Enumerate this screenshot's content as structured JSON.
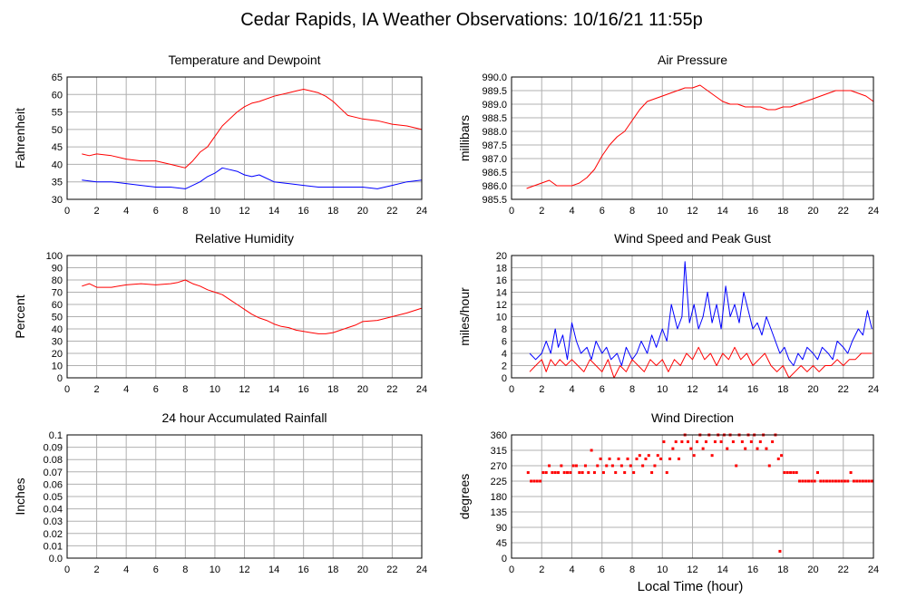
{
  "page": {
    "title": "Cedar Rapids, IA Weather Observations: 10/16/21 11:55p",
    "xlabel": "Local Time (hour)"
  },
  "chart_data": [
    {
      "type": "line",
      "title": "Temperature and Dewpoint",
      "ylabel": "Fahrenheit",
      "xlim": [
        0,
        24
      ],
      "ylim": [
        30,
        65
      ],
      "xticks": [
        0,
        2,
        4,
        6,
        8,
        10,
        12,
        14,
        16,
        18,
        20,
        22,
        24
      ],
      "yticks": [
        30,
        35,
        40,
        45,
        50,
        55,
        60,
        65
      ],
      "grid": true,
      "series": [
        {
          "color": "#ff0000",
          "x": [
            1,
            1.5,
            2,
            3,
            4,
            5,
            6,
            7,
            7.5,
            8,
            8.5,
            9,
            9.5,
            10,
            10.5,
            11,
            11.5,
            12,
            12.5,
            13,
            14,
            15,
            15.5,
            16,
            16.5,
            17,
            17.5,
            18,
            18.5,
            19,
            20,
            21,
            22,
            23,
            24
          ],
          "y": [
            43,
            42.5,
            43,
            42.5,
            41.5,
            41,
            41,
            40,
            39.5,
            39,
            41,
            43.5,
            45,
            48,
            51,
            53,
            55,
            56.5,
            57.5,
            58,
            59.5,
            60.5,
            61,
            61.5,
            61,
            60.5,
            59.5,
            58,
            56,
            54,
            53,
            52.5,
            51.5,
            51,
            50
          ]
        },
        {
          "color": "#0000ff",
          "x": [
            1,
            2,
            3,
            4,
            5,
            6,
            7,
            8,
            8.5,
            9,
            9.5,
            10,
            10.5,
            11,
            11.5,
            12,
            12.5,
            13,
            14,
            15,
            16,
            17,
            18,
            19,
            20,
            21,
            22,
            23,
            24
          ],
          "y": [
            35.5,
            35,
            35,
            34.5,
            34,
            33.5,
            33.5,
            33,
            34,
            35,
            36.5,
            37.5,
            39,
            38.5,
            38,
            37,
            36.5,
            37,
            35,
            34.5,
            34,
            33.5,
            33.5,
            33.5,
            33.5,
            33,
            34,
            35,
            35.5
          ]
        }
      ]
    },
    {
      "type": "line",
      "title": "Air Pressure",
      "ylabel": "millibars",
      "xlim": [
        0,
        24
      ],
      "ylim": [
        985.5,
        990.0
      ],
      "xticks": [
        0,
        2,
        4,
        6,
        8,
        10,
        12,
        14,
        16,
        18,
        20,
        22,
        24
      ],
      "yticks": [
        985.5,
        986.0,
        986.5,
        987.0,
        987.5,
        988.0,
        988.5,
        989.0,
        989.5,
        990.0
      ],
      "ytick_labels": [
        "985.5",
        "986.0",
        "986.5",
        "987.0",
        "987.5",
        "988.0",
        "988.5",
        "989.0",
        "989.5",
        "990.0"
      ],
      "grid": true,
      "series": [
        {
          "color": "#ff0000",
          "x": [
            1,
            1.5,
            2,
            2.5,
            3,
            3.5,
            4,
            4.5,
            5,
            5.5,
            6,
            6.5,
            7,
            7.5,
            8,
            8.5,
            9,
            9.5,
            10,
            10.5,
            11,
            11.5,
            12,
            12.5,
            13,
            13.5,
            14,
            14.5,
            15,
            15.5,
            16,
            16.5,
            17,
            17.5,
            18,
            18.5,
            19,
            19.5,
            20,
            20.5,
            21,
            21.5,
            22,
            22.5,
            23,
            23.5,
            24
          ],
          "y": [
            985.9,
            986.0,
            986.1,
            986.2,
            986.0,
            986.0,
            986.0,
            986.1,
            986.3,
            986.6,
            987.1,
            987.5,
            987.8,
            988.0,
            988.4,
            988.8,
            989.1,
            989.2,
            989.3,
            989.4,
            989.5,
            989.6,
            989.6,
            989.7,
            989.5,
            989.3,
            989.1,
            989.0,
            989.0,
            988.9,
            988.9,
            988.9,
            988.8,
            988.8,
            988.9,
            988.9,
            989.0,
            989.1,
            989.2,
            989.3,
            989.4,
            989.5,
            989.5,
            989.5,
            989.4,
            989.3,
            989.1
          ]
        }
      ]
    },
    {
      "type": "line",
      "title": "Relative Humidity",
      "ylabel": "Percent",
      "xlim": [
        0,
        24
      ],
      "ylim": [
        0,
        100
      ],
      "xticks": [
        0,
        2,
        4,
        6,
        8,
        10,
        12,
        14,
        16,
        18,
        20,
        22,
        24
      ],
      "yticks": [
        0,
        10,
        20,
        30,
        40,
        50,
        60,
        70,
        80,
        90,
        100
      ],
      "grid": true,
      "series": [
        {
          "color": "#ff0000",
          "x": [
            1,
            1.5,
            2,
            3,
            4,
            5,
            6,
            7,
            7.5,
            8,
            8.5,
            9,
            9.5,
            10,
            10.5,
            11,
            11.5,
            12,
            12.5,
            13,
            13.5,
            14,
            14.5,
            15,
            15.5,
            16,
            16.5,
            17,
            17.5,
            18,
            18.5,
            19,
            19.5,
            20,
            21,
            22,
            23,
            24
          ],
          "y": [
            75,
            77,
            74,
            74,
            76,
            77,
            76,
            77,
            78,
            80,
            77,
            75,
            72,
            70,
            68,
            64,
            60,
            56,
            52,
            49,
            47,
            44,
            42,
            41,
            39,
            38,
            37,
            36,
            36,
            37,
            39,
            41,
            43,
            46,
            47,
            50,
            53,
            57
          ]
        }
      ]
    },
    {
      "type": "line",
      "title": "Wind Speed and Peak Gust",
      "ylabel": "miles/hour",
      "xlim": [
        0,
        24
      ],
      "ylim": [
        0,
        20
      ],
      "xticks": [
        0,
        2,
        4,
        6,
        8,
        10,
        12,
        14,
        16,
        18,
        20,
        22,
        24
      ],
      "yticks": [
        0,
        2,
        4,
        6,
        8,
        10,
        12,
        14,
        16,
        18,
        20
      ],
      "grid": true,
      "series": [
        {
          "color": "#0000ff",
          "x": [
            1.2,
            1.6,
            2,
            2.3,
            2.6,
            2.9,
            3.1,
            3.4,
            3.7,
            4,
            4.3,
            4.6,
            5,
            5.3,
            5.6,
            6,
            6.3,
            6.6,
            7,
            7.3,
            7.6,
            8,
            8.3,
            8.6,
            9,
            9.3,
            9.6,
            10,
            10.3,
            10.6,
            11,
            11.3,
            11.5,
            11.8,
            12.1,
            12.4,
            12.7,
            13,
            13.3,
            13.6,
            13.9,
            14.2,
            14.5,
            14.8,
            15.1,
            15.4,
            15.7,
            16,
            16.3,
            16.6,
            16.9,
            17.2,
            17.5,
            17.8,
            18.1,
            18.4,
            18.7,
            19,
            19.3,
            19.6,
            20,
            20.3,
            20.6,
            21,
            21.3,
            21.6,
            22,
            22.3,
            22.6,
            23,
            23.3,
            23.6,
            23.9
          ],
          "y": [
            4,
            3,
            4,
            6,
            4,
            8,
            5,
            7,
            3,
            9,
            6,
            4,
            5,
            3,
            6,
            4,
            5,
            3,
            4,
            2,
            5,
            3,
            4,
            6,
            4,
            7,
            5,
            8,
            6,
            12,
            8,
            10,
            19,
            9,
            12,
            8,
            10,
            14,
            9,
            12,
            8,
            15,
            10,
            12,
            9,
            14,
            11,
            8,
            9,
            7,
            10,
            8,
            6,
            4,
            5,
            3,
            2,
            4,
            3,
            5,
            4,
            3,
            5,
            4,
            3,
            6,
            5,
            4,
            6,
            8,
            7,
            11,
            8
          ]
        },
        {
          "color": "#ff0000",
          "x": [
            1.2,
            1.6,
            2,
            2.3,
            2.6,
            2.9,
            3.2,
            3.6,
            4,
            4.4,
            4.8,
            5.2,
            5.6,
            6,
            6.4,
            6.8,
            7.2,
            7.6,
            8,
            8.4,
            8.8,
            9.2,
            9.6,
            10,
            10.4,
            10.8,
            11.2,
            11.6,
            12,
            12.4,
            12.8,
            13.2,
            13.6,
            14,
            14.4,
            14.8,
            15.2,
            15.6,
            16,
            16.4,
            16.8,
            17.2,
            17.6,
            18,
            18.4,
            18.8,
            19.2,
            19.6,
            20,
            20.4,
            20.8,
            21.2,
            21.6,
            22,
            22.4,
            22.8,
            23.2,
            23.6,
            23.9
          ],
          "y": [
            1,
            2,
            3,
            1,
            3,
            2,
            3,
            2,
            3,
            2,
            1,
            3,
            2,
            1,
            3,
            0,
            2,
            1,
            3,
            2,
            1,
            3,
            2,
            3,
            1,
            3,
            2,
            4,
            3,
            5,
            3,
            4,
            2,
            4,
            3,
            5,
            3,
            4,
            2,
            3,
            4,
            2,
            1,
            2,
            0,
            1,
            2,
            1,
            2,
            1,
            2,
            2,
            3,
            2,
            3,
            3,
            4,
            4,
            4
          ]
        }
      ]
    },
    {
      "type": "line",
      "title": "24 hour Accumulated Rainfall",
      "ylabel": "Inches",
      "xlim": [
        0,
        24
      ],
      "ylim": [
        0,
        0.1
      ],
      "xticks": [
        0,
        2,
        4,
        6,
        8,
        10,
        12,
        14,
        16,
        18,
        20,
        22,
        24
      ],
      "yticks": [
        0,
        0.01,
        0.02,
        0.03,
        0.04,
        0.05,
        0.06,
        0.07,
        0.08,
        0.09,
        0.1
      ],
      "ytick_labels": [
        "0.0",
        "0.01",
        "0.02",
        "0.03",
        "0.04",
        "0.05",
        "0.06",
        "0.07",
        "0.08",
        "0.09",
        "0.1"
      ],
      "grid": true,
      "series": [
        {
          "color": "#ff0000",
          "x": [
            1,
            24
          ],
          "y": [
            0,
            0
          ]
        }
      ]
    },
    {
      "type": "scatter",
      "title": "Wind Direction",
      "ylabel": "degrees",
      "xlabel": "Local Time (hour)",
      "xlim": [
        0,
        24
      ],
      "ylim": [
        0,
        360
      ],
      "xticks": [
        0,
        2,
        4,
        6,
        8,
        10,
        12,
        14,
        16,
        18,
        20,
        22,
        24
      ],
      "yticks": [
        0,
        45,
        90,
        135,
        180,
        225,
        270,
        315,
        360
      ],
      "grid": true,
      "series": [
        {
          "color": "#ff0000",
          "x": [
            1.1,
            1.3,
            1.5,
            1.7,
            1.9,
            2.1,
            2.3,
            2.5,
            2.7,
            2.9,
            3.1,
            3.3,
            3.5,
            3.7,
            3.9,
            4.1,
            4.3,
            4.5,
            4.7,
            4.9,
            5.1,
            5.3,
            5.5,
            5.7,
            5.9,
            6.1,
            6.3,
            6.5,
            6.7,
            6.9,
            7.1,
            7.3,
            7.5,
            7.7,
            7.9,
            8.1,
            8.3,
            8.5,
            8.7,
            8.9,
            9.1,
            9.3,
            9.5,
            9.7,
            9.9,
            10.1,
            10.3,
            10.5,
            10.7,
            10.9,
            11.1,
            11.3,
            11.5,
            11.7,
            11.9,
            12.1,
            12.3,
            12.5,
            12.7,
            12.9,
            13.1,
            13.3,
            13.5,
            13.7,
            13.9,
            14.1,
            14.3,
            14.5,
            14.7,
            14.9,
            15.1,
            15.3,
            15.5,
            15.7,
            15.9,
            16.1,
            16.3,
            16.5,
            16.7,
            16.9,
            17.1,
            17.3,
            17.5,
            17.7,
            17.8,
            17.9,
            18.1,
            18.3,
            18.5,
            18.7,
            18.9,
            19.1,
            19.3,
            19.5,
            19.7,
            19.9,
            20.1,
            20.3,
            20.5,
            20.7,
            20.9,
            21.1,
            21.3,
            21.5,
            21.7,
            21.9,
            22.1,
            22.3,
            22.5,
            22.7,
            22.9,
            23.1,
            23.3,
            23.5,
            23.7,
            23.9
          ],
          "y": [
            250,
            225,
            225,
            225,
            225,
            250,
            250,
            270,
            250,
            250,
            250,
            270,
            250,
            250,
            250,
            270,
            270,
            250,
            250,
            270,
            250,
            315,
            250,
            270,
            290,
            250,
            270,
            290,
            270,
            250,
            290,
            270,
            250,
            290,
            270,
            250,
            290,
            300,
            270,
            290,
            300,
            250,
            270,
            300,
            290,
            340,
            250,
            290,
            320,
            340,
            290,
            340,
            360,
            340,
            320,
            300,
            340,
            360,
            320,
            340,
            360,
            300,
            340,
            360,
            340,
            360,
            320,
            360,
            340,
            270,
            360,
            340,
            320,
            360,
            340,
            360,
            320,
            340,
            360,
            320,
            270,
            340,
            360,
            290,
            20,
            300,
            250,
            250,
            250,
            250,
            250,
            225,
            225,
            225,
            225,
            225,
            225,
            250,
            225,
            225,
            225,
            225,
            225,
            225,
            225,
            225,
            225,
            225,
            250,
            225,
            225,
            225,
            225,
            225,
            225,
            225
          ]
        }
      ]
    }
  ]
}
